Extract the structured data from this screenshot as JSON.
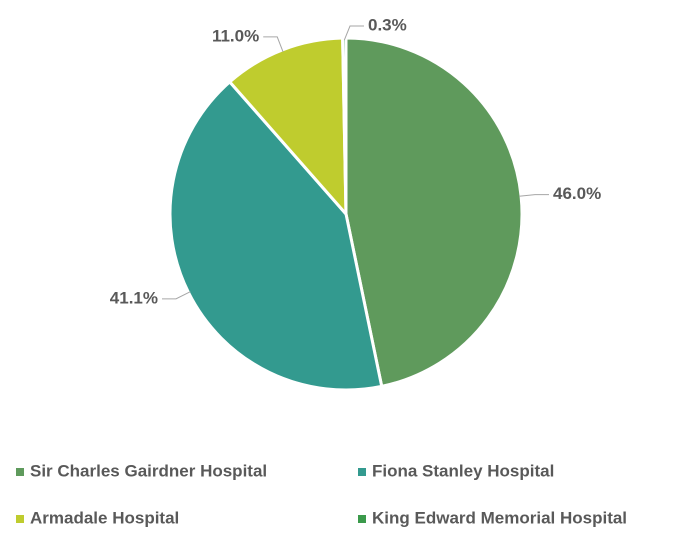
{
  "chart_data": {
    "type": "pie",
    "categories": [
      "Sir Charles Gairdner Hospital",
      "Fiona Stanley Hospital",
      "Armadale Hospital",
      "King Edward Memorial Hospital"
    ],
    "values": [
      46.0,
      41.1,
      11.0,
      0.3
    ],
    "value_labels": [
      "46.0%",
      "41.1%",
      "11.0%",
      "0.3%"
    ],
    "colors": [
      "#5f9a5c",
      "#339a8f",
      "#bfcc2e",
      "#3b9a4b"
    ],
    "legend": "bottom"
  }
}
